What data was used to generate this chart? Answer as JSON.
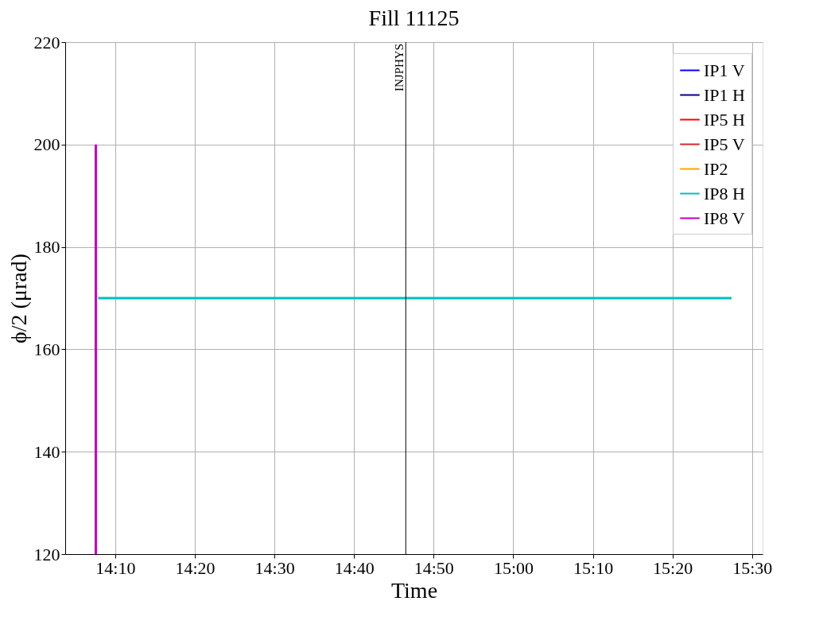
{
  "chart_data": {
    "type": "line",
    "title": "Fill 11125",
    "xlabel": "Time",
    "ylabel": "ϕ/2 (μrad)",
    "series": [
      {
        "name": "IP1 V",
        "color": "#0000ff"
      },
      {
        "name": "IP1 H",
        "color": "#00008b"
      },
      {
        "name": "IP5 H",
        "color": "#ff0000"
      },
      {
        "name": "IP5 V",
        "color": "#d62728"
      },
      {
        "name": "IP2",
        "color": "#ffa500"
      },
      {
        "name": "IP8 H",
        "color": "#00bfbf",
        "x": [
          14.131,
          15.457
        ],
        "values": [
          170,
          170
        ]
      },
      {
        "name": "IP8 V",
        "color": "#bf00bf",
        "x": [
          14.126,
          14.126
        ],
        "values": [
          200,
          120
        ]
      }
    ],
    "xlim": [
      14.062,
      15.522
    ],
    "xticks": [
      {
        "value": 14.1667,
        "label": "14:10"
      },
      {
        "value": 14.3333,
        "label": "14:20"
      },
      {
        "value": 14.5,
        "label": "14:30"
      },
      {
        "value": 14.6667,
        "label": "14:40"
      },
      {
        "value": 14.8333,
        "label": "14:50"
      },
      {
        "value": 15.0,
        "label": "15:00"
      },
      {
        "value": 15.1667,
        "label": "15:10"
      },
      {
        "value": 15.3333,
        "label": "15:20"
      },
      {
        "value": 15.5,
        "label": "15:30"
      }
    ],
    "ylim": [
      120,
      220
    ],
    "yticks": [
      120,
      140,
      160,
      180,
      200,
      220
    ],
    "ref_lines": [
      {
        "axis": "x",
        "value": 14.775,
        "label": "INJPHYS",
        "color": "#000000"
      }
    ],
    "grid": true,
    "legend": "top right",
    "marker": "none",
    "line_style": "solid"
  }
}
